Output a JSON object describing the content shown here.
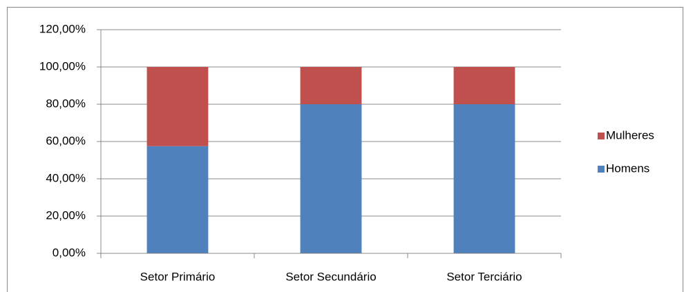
{
  "chart_data": {
    "type": "stacked-bar",
    "categories": [
      "Setor Primário",
      "Setor Secundário",
      "Setor Terciário"
    ],
    "series": [
      {
        "name": "Homens",
        "color": "#4f81bd",
        "values": [
          57.5,
          80,
          80
        ]
      },
      {
        "name": "Mulheres",
        "color": "#c0504d",
        "values": [
          42.5,
          20,
          20
        ]
      }
    ],
    "ylim": [
      0,
      120
    ],
    "yticks": [
      {
        "value": 0,
        "label": "0,00%"
      },
      {
        "value": 20,
        "label": "20,00%"
      },
      {
        "value": 40,
        "label": "40,00%"
      },
      {
        "value": 60,
        "label": "60,00%"
      },
      {
        "value": 80,
        "label": "80,00%"
      },
      {
        "value": 100,
        "label": "100,00%"
      },
      {
        "value": 120,
        "label": "120,00%"
      }
    ],
    "grid": true,
    "legend": "right"
  }
}
